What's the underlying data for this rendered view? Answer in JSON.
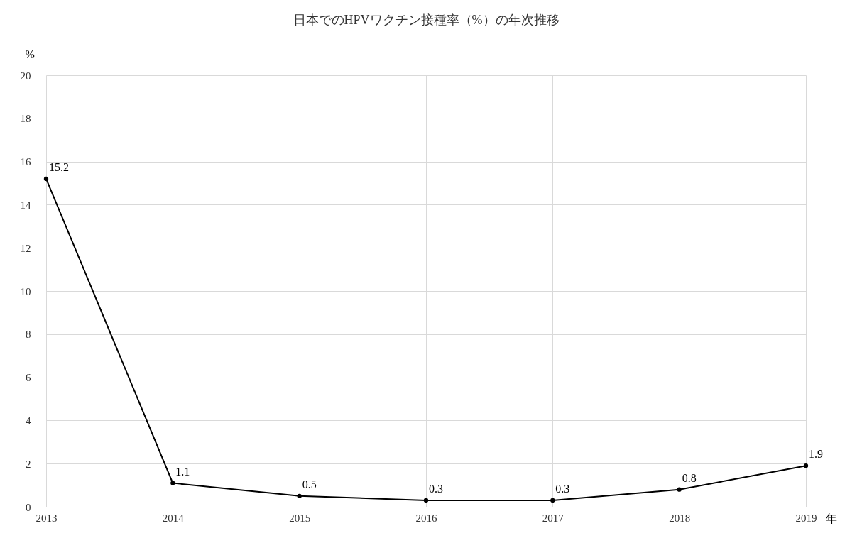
{
  "chart_data": {
    "type": "line",
    "title": "日本でのHPVワクチン接種率（%）の年次推移",
    "xlabel": "年",
    "ylabel": "%",
    "x": [
      2013,
      2014,
      2015,
      2016,
      2017,
      2018,
      2019
    ],
    "series": [
      {
        "color": "#000000",
        "values": [
          15.2,
          1.1,
          0.5,
          0.3,
          0.3,
          0.8,
          1.9
        ]
      }
    ],
    "xlim": [
      2013,
      2019
    ],
    "xticks": [
      2013,
      2014,
      2015,
      2016,
      2017,
      2018,
      2019
    ],
    "ylim": [
      0,
      20
    ],
    "yticks": [
      0,
      2,
      4,
      6,
      8,
      10,
      12,
      14,
      16,
      18,
      20
    ],
    "grid": true,
    "data_labels": true,
    "marker": "circle",
    "line_style": "solid",
    "legend": false
  }
}
